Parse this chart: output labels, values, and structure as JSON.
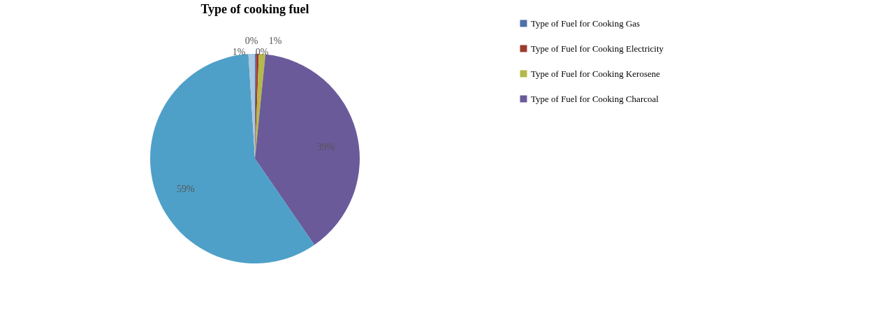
{
  "chart_data": {
    "type": "pie",
    "title": "Type of cooking fuel",
    "categories": [
      "Type of Fuel for Cooking Gas",
      "Type of Fuel for Cooking Electricity",
      "Type of Fuel for Cooking Kerosene",
      "Type of Fuel for Cooking Charcoal",
      null,
      null
    ],
    "values": [
      0.2,
      0.4,
      1.0,
      38.8,
      58.6,
      1.0
    ],
    "value_labels": [
      "0%",
      "0%",
      "1%",
      "39%",
      "59%",
      "1%"
    ],
    "colors": [
      "#4f6fa8",
      "#9b3b2e",
      "#b5b84a",
      "#6a5a9a",
      "#4ea0c8",
      "#a8c8e0"
    ],
    "legend": "right"
  }
}
